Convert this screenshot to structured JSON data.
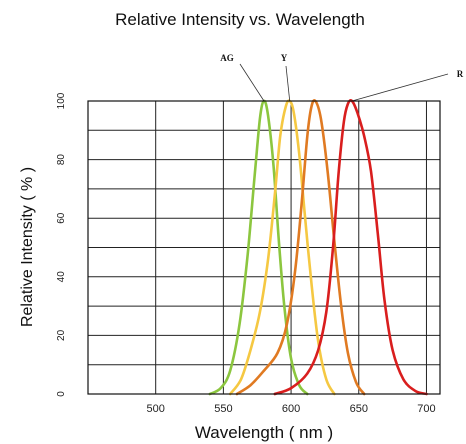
{
  "chart_data": {
    "type": "line",
    "title": "Relative Intensity vs. Wavelength",
    "xlabel": "Wavelength ( nm )",
    "ylabel": "Relative Intensity ( % )",
    "xlim": [
      450,
      710
    ],
    "ylim": [
      0,
      100
    ],
    "xticks": [
      500,
      550,
      600,
      650,
      700
    ],
    "yticks": [
      0,
      20,
      40,
      60,
      80,
      100
    ],
    "grid": true,
    "series": [
      {
        "name": "AG",
        "color": "#8cc63f",
        "x": [
          540,
          548,
          555,
          562,
          568,
          573,
          577,
          580,
          583,
          587,
          591,
          595,
          600,
          606,
          612
        ],
        "y": [
          0,
          2,
          8,
          24,
          48,
          74,
          94,
          100,
          95,
          78,
          52,
          30,
          12,
          3,
          0
        ]
      },
      {
        "name": "Y",
        "color": "#f5c842",
        "x": [
          555,
          563,
          570,
          577,
          583,
          588,
          592,
          596,
          599,
          602,
          606,
          610,
          615,
          620,
          626,
          632
        ],
        "y": [
          0,
          5,
          15,
          28,
          46,
          68,
          88,
          98,
          100,
          96,
          82,
          62,
          38,
          18,
          5,
          0
        ]
      },
      {
        "name": "",
        "color": "#e07a22",
        "x": [
          560,
          570,
          580,
          590,
          597,
          603,
          608,
          612,
          615,
          618,
          622,
          627,
          632,
          637,
          642,
          648,
          654
        ],
        "y": [
          0,
          3,
          8,
          14,
          24,
          42,
          66,
          88,
          98,
          100,
          94,
          76,
          52,
          30,
          14,
          4,
          0
        ]
      },
      {
        "name": "R",
        "color": "#d91e1e",
        "x": [
          588,
          600,
          612,
          620,
          626,
          631,
          635,
          639,
          642,
          645,
          649,
          654,
          659,
          664,
          669,
          675,
          683,
          692,
          700
        ],
        "y": [
          0,
          2,
          7,
          15,
          28,
          50,
          75,
          93,
          99,
          100,
          96,
          88,
          76,
          55,
          32,
          15,
          5,
          1,
          0
        ]
      }
    ]
  }
}
